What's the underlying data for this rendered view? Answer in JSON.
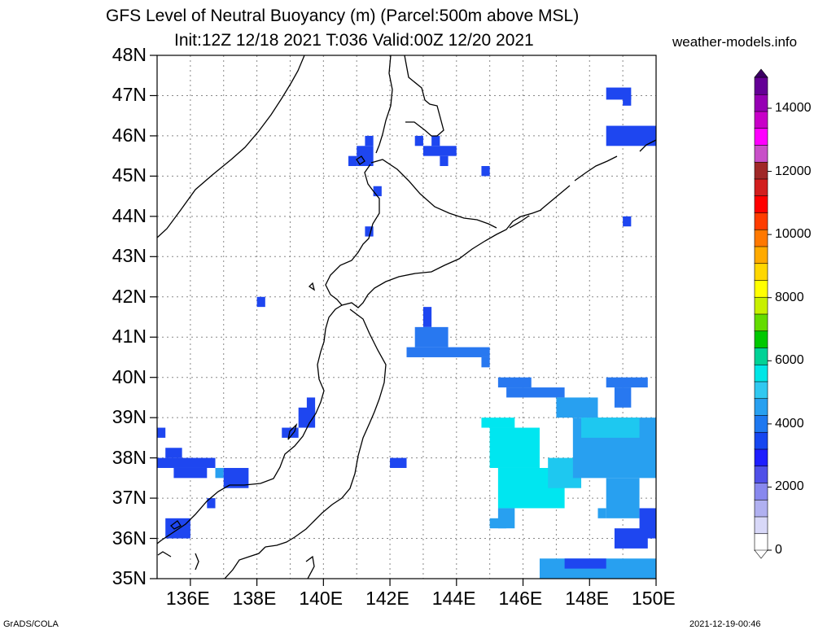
{
  "title": {
    "line1": "GFS Level of Neutral Buoyancy (m) (Parcel:500m above MSL)",
    "line2": "Init:12Z 12/18 2021 T:036 Valid:00Z 12/20 2021",
    "site": "weather-models.info"
  },
  "footer": {
    "left": "GrADS/COLA",
    "right": "2021-12-19-00:46"
  },
  "map": {
    "lon_range": [
      135,
      150
    ],
    "lat_range": [
      35,
      48
    ],
    "lat_labels": [
      "48N",
      "47N",
      "46N",
      "45N",
      "44N",
      "43N",
      "42N",
      "41N",
      "40N",
      "39N",
      "38N",
      "37N",
      "36N",
      "35N"
    ],
    "lon_labels": [
      "136E",
      "138E",
      "140E",
      "142E",
      "144E",
      "146E",
      "148E",
      "150E"
    ]
  },
  "colorbar": {
    "labels": [
      "14000",
      "12000",
      "10000",
      "8000",
      "6000",
      "4000",
      "2000",
      "0"
    ],
    "colors": [
      "#ffffff",
      "#d8d8f8",
      "#b0b0f0",
      "#8888ee",
      "#5050e8",
      "#1e1eff",
      "#1646f0",
      "#1e78f0",
      "#28a0f0",
      "#30c8f0",
      "#00e6e6",
      "#00d296",
      "#00c800",
      "#64dc00",
      "#c8f000",
      "#ffff00",
      "#ffd700",
      "#ffaa00",
      "#ff7800",
      "#ff3c00",
      "#ff0000",
      "#d21e1e",
      "#a02828",
      "#c850c8",
      "#ff00ff",
      "#c800c8",
      "#9600b4",
      "#640096"
    ]
  }
}
